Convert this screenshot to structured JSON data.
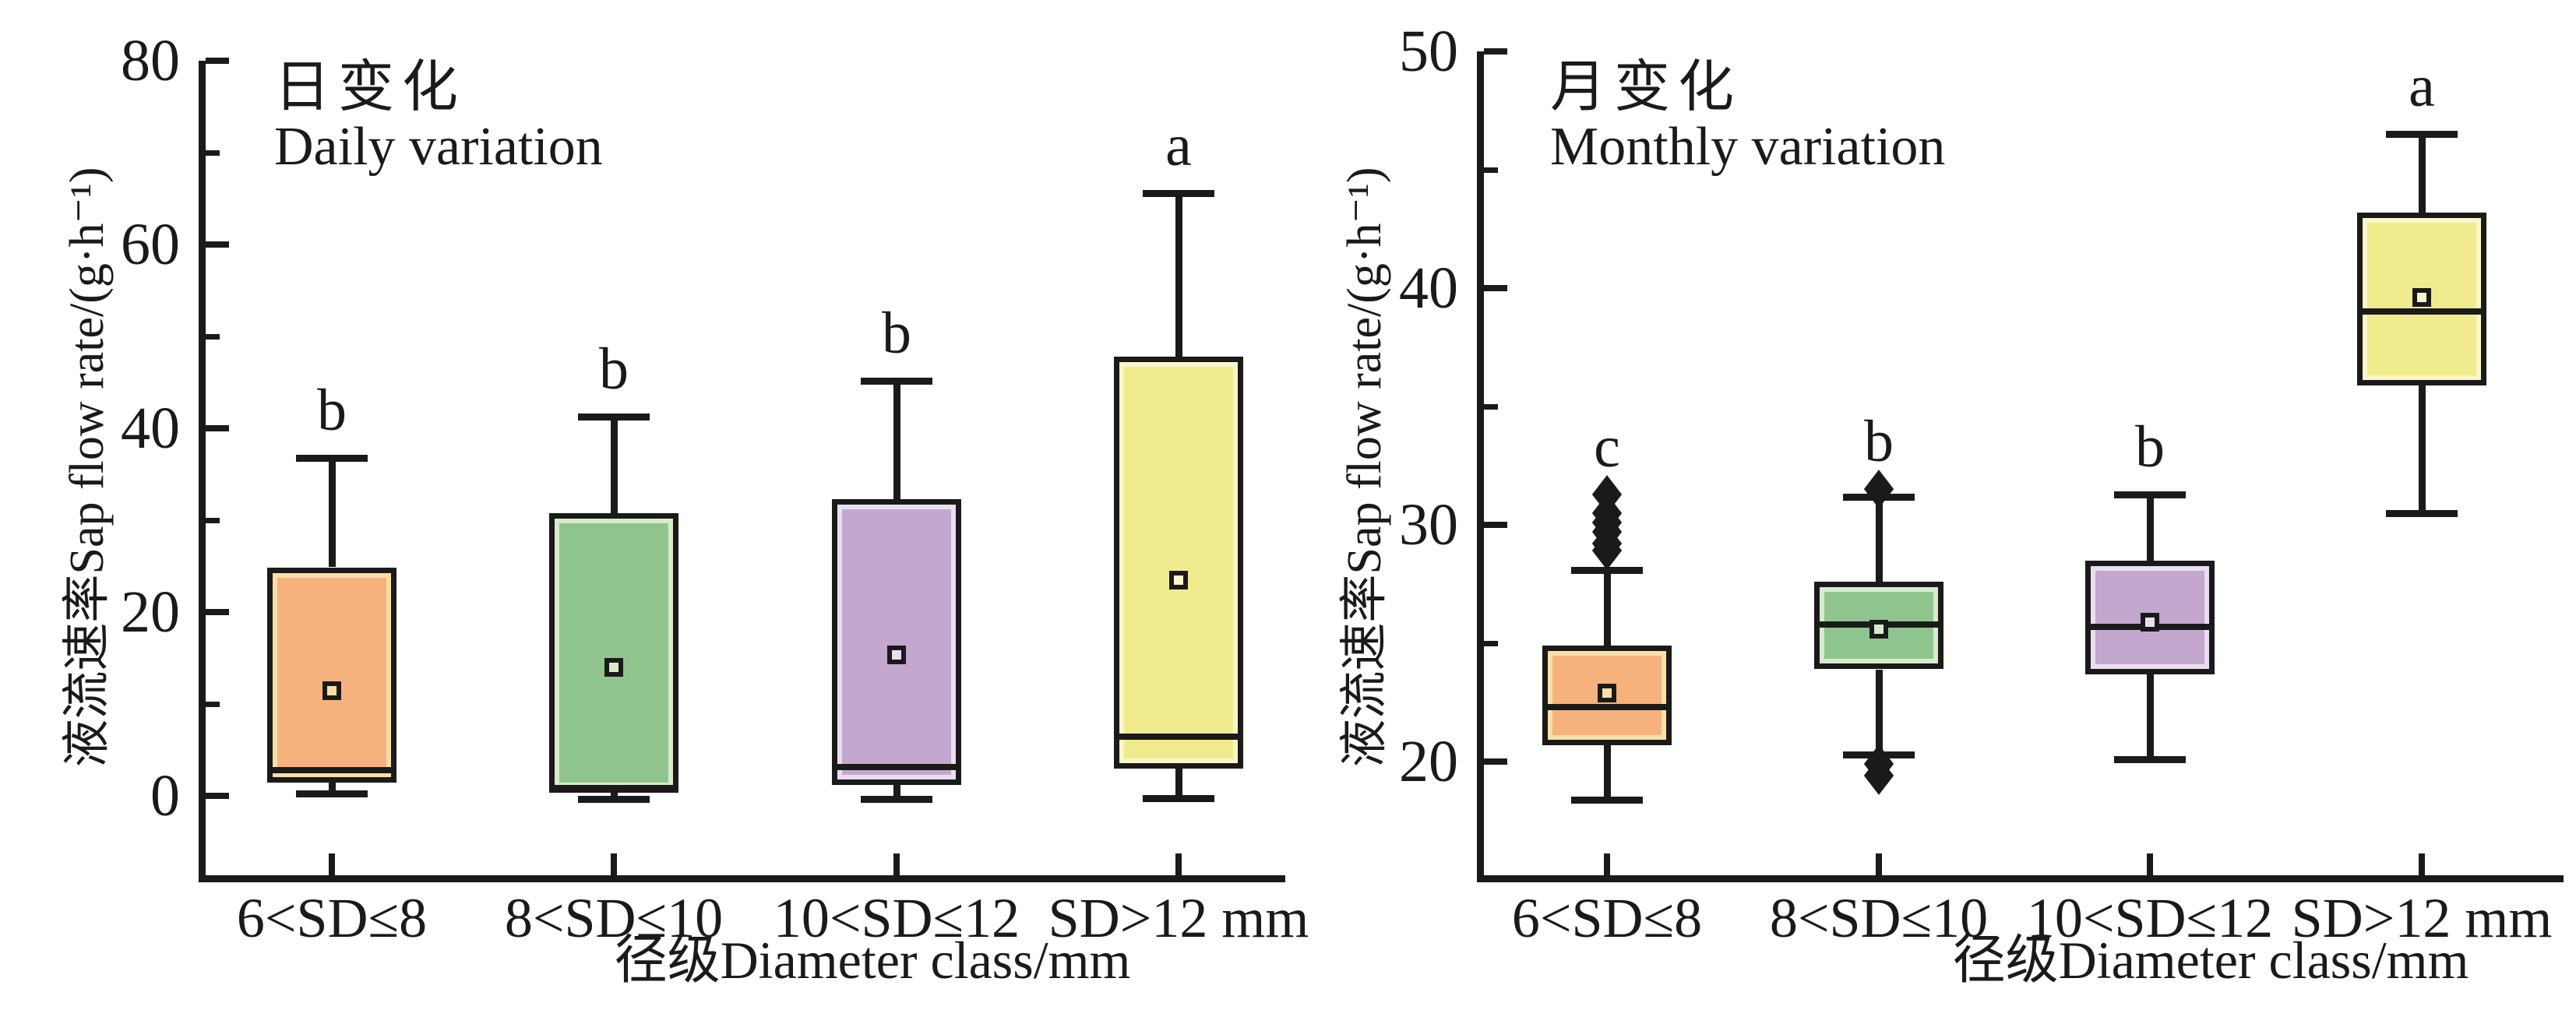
{
  "figure": {
    "background": "#ffffff",
    "line_color": "#1a1a1a"
  },
  "chart_data": [
    {
      "type": "boxplot",
      "title_zh": "日变化",
      "title_en": "Daily variation",
      "ylabel": "液流速率Sap flow rate/(g·h⁻¹)",
      "xlabel": "径级Diameter class/mm",
      "categories": [
        "6<SD≤8",
        "8<SD≤10",
        "10<SD≤12",
        "SD>12 mm"
      ],
      "ylim": [
        -8.6,
        80
      ],
      "yticks": [
        0,
        20,
        40,
        60,
        80
      ],
      "yticks_minor": [
        10,
        30,
        50,
        70
      ],
      "grid": false,
      "legend": "none",
      "boxes": [
        {
          "category": "6<SD≤8",
          "letter": "b",
          "fill": "#F5B27C",
          "fill_light": "#FCDFA6",
          "whisker_low": 0.3,
          "q1": 1.5,
          "median": 2.8,
          "mean": 11.5,
          "q3": 24.9,
          "whisker_high": 36.8,
          "outliers": []
        },
        {
          "category": "8<SD≤10",
          "letter": "b",
          "fill": "#90C48F",
          "fill_light": "#D8EBCD",
          "whisker_low": -0.3,
          "q1": 0.4,
          "median": 0.9,
          "mean": 14.0,
          "q3": 30.8,
          "whisker_high": 41.3,
          "outliers": []
        },
        {
          "category": "10<SD≤12",
          "letter": "b",
          "fill": "#C3A7CE",
          "fill_light": "#EADFF0",
          "whisker_low": -0.3,
          "q1": 1.2,
          "median": 3.2,
          "mean": 15.4,
          "q3": 32.3,
          "whisker_high": 45.2,
          "outliers": []
        },
        {
          "category": "SD>12 mm",
          "letter": "a",
          "fill": "#F0EC8E",
          "fill_light": "#F9F6C9",
          "whisker_low": -0.2,
          "q1": 3.0,
          "median": 6.5,
          "mean": 23.5,
          "q3": 47.8,
          "whisker_high": 65.6,
          "outliers": []
        }
      ]
    },
    {
      "type": "boxplot",
      "title_zh": "月变化",
      "title_en": "Monthly variation",
      "ylabel": "液流速率Sap flow rate/(g·h⁻¹)",
      "xlabel": "径级Diameter class/mm",
      "categories": [
        "6<SD≤8",
        "8<SD≤10",
        "10<SD≤12",
        "SD>12 mm"
      ],
      "ylim": [
        15.2,
        50
      ],
      "yticks": [
        20,
        30,
        40,
        50
      ],
      "yticks_minor": [
        25,
        35,
        45
      ],
      "grid": false,
      "legend": "none",
      "boxes": [
        {
          "category": "6<SD≤8",
          "letter": "c",
          "fill": "#F5B27C",
          "fill_light": "#FCDFA6",
          "whisker_low": 18.4,
          "q1": 20.7,
          "median": 22.3,
          "mean": 22.9,
          "q3": 24.9,
          "whisker_high": 28.1,
          "outliers": [
            31.3,
            30.5,
            30.1,
            29.7,
            29.2,
            28.9
          ]
        },
        {
          "category": "8<SD≤10",
          "letter": "b",
          "fill": "#90C48F",
          "fill_light": "#D8EBCD",
          "whisker_low": 20.3,
          "q1": 23.9,
          "median": 25.8,
          "mean": 25.6,
          "q3": 27.6,
          "whisker_high": 31.2,
          "outliers": [
            31.5,
            19.9,
            19.4
          ]
        },
        {
          "category": "10<SD≤12",
          "letter": "b",
          "fill": "#C3A7CE",
          "fill_light": "#EADFF0",
          "whisker_low": 20.1,
          "q1": 23.7,
          "median": 25.7,
          "mean": 25.9,
          "q3": 28.5,
          "whisker_high": 31.3,
          "outliers": []
        },
        {
          "category": "SD>12 mm",
          "letter": "a",
          "fill": "#F0EC8E",
          "fill_light": "#F9F6C9",
          "whisker_low": 30.5,
          "q1": 35.9,
          "median": 39.0,
          "mean": 39.6,
          "q3": 43.2,
          "whisker_high": 46.5,
          "outliers": []
        }
      ]
    }
  ]
}
